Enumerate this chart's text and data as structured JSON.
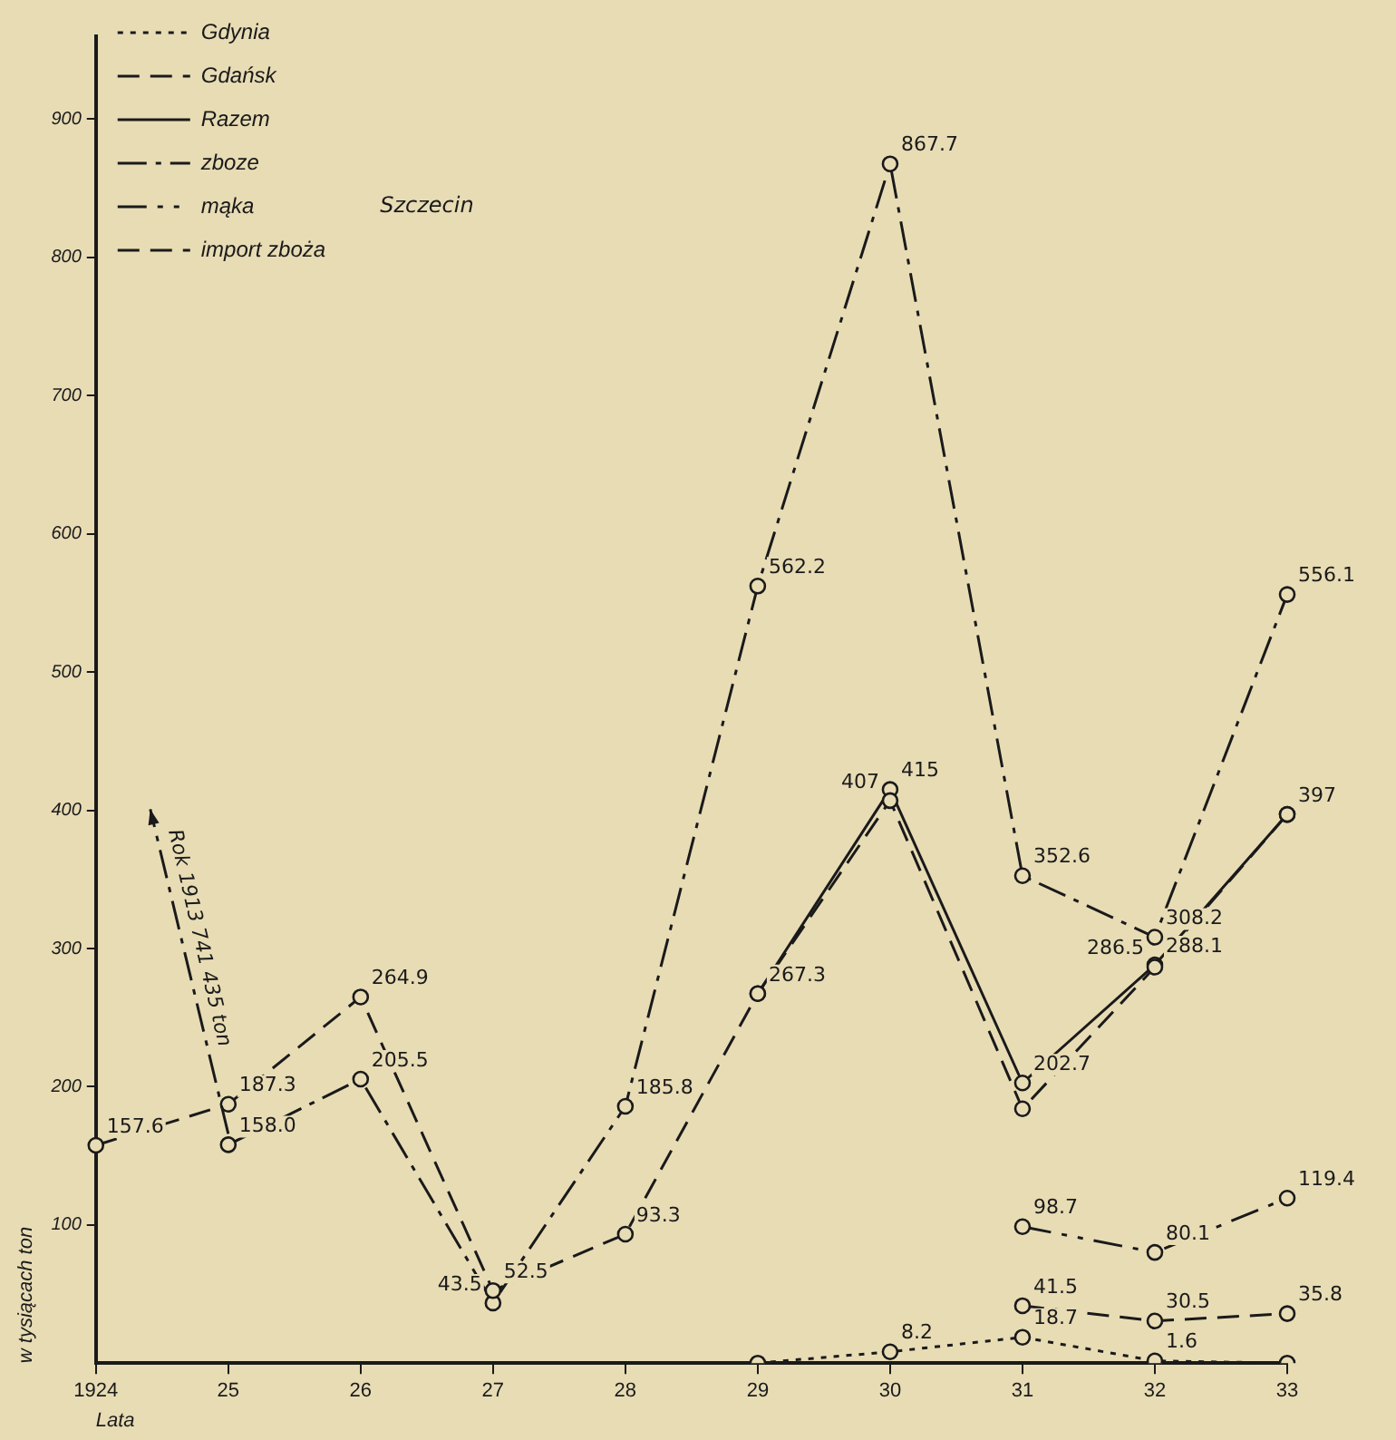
{
  "chart_data": {
    "type": "line",
    "xlabel": "Lata",
    "ylabel": "w tysiącach ton",
    "categories": [
      "1924",
      "25",
      "26",
      "27",
      "28",
      "29",
      "30",
      "31",
      "32",
      "33"
    ],
    "ylim": [
      0,
      960
    ],
    "yticks": [
      100,
      200,
      300,
      400,
      500,
      600,
      700,
      800,
      900
    ],
    "grid": false,
    "legend": "top left",
    "marker": "circle",
    "series": [
      {
        "name": "Gdynia",
        "color": "#1a1a1a",
        "line_style": "dotted",
        "values": [
          null,
          null,
          null,
          null,
          null,
          0,
          8.2,
          18.7,
          1.6,
          0
        ],
        "value_labels": [
          null,
          null,
          null,
          null,
          null,
          null,
          "8.2",
          "18.7",
          "1.6",
          null
        ]
      },
      {
        "name": "Gdańsk",
        "color": "#1a1a1a",
        "line_style": "dashed",
        "values": [
          157.6,
          187.3,
          264.9,
          52.5,
          93.3,
          267.3,
          407,
          184,
          286.5,
          397
        ],
        "value_labels": [
          "157.6",
          "187.3",
          "264.9",
          "52.5",
          "93.3",
          "267.3",
          "407",
          null,
          "286.5",
          null
        ]
      },
      {
        "name": "Razem",
        "color": "#1a1a1a",
        "line_style": "solid",
        "values": [
          null,
          null,
          null,
          null,
          null,
          267.3,
          415,
          202.7,
          288.1,
          397
        ],
        "value_labels": [
          null,
          null,
          null,
          null,
          null,
          null,
          "415",
          "202.7",
          "288.1",
          "397"
        ]
      },
      {
        "name": "zboze",
        "color": "#1a1a1a",
        "line_style": "dashdot",
        "values": [
          null,
          158.0,
          205.5,
          43.5,
          185.8,
          562.2,
          867.7,
          352.6,
          308.2,
          556.1
        ],
        "value_labels": [
          null,
          "158.0",
          "205.5",
          "43.5",
          "185.8",
          "562.2",
          "867.7",
          "352.6",
          "308.2",
          "556.1"
        ]
      },
      {
        "name": "mąka",
        "color": "#1a1a1a",
        "line_style": "dashdotdot",
        "values": [
          null,
          null,
          null,
          null,
          null,
          null,
          null,
          98.7,
          80.1,
          119.4
        ],
        "value_labels": [
          null,
          null,
          null,
          null,
          null,
          null,
          null,
          "98.7",
          "80.1",
          "119.4"
        ]
      },
      {
        "name": "import zboża",
        "color": "#1a1a1a",
        "line_style": "dashed",
        "values": [
          null,
          null,
          null,
          null,
          null,
          null,
          null,
          41.5,
          30.5,
          35.8
        ],
        "value_labels": [
          null,
          null,
          null,
          null,
          null,
          null,
          null,
          "41.5",
          "30.5",
          "35.8"
        ]
      }
    ],
    "annotations": [
      "Szczecin",
      "Rok 1913 741 435 ton"
    ]
  }
}
